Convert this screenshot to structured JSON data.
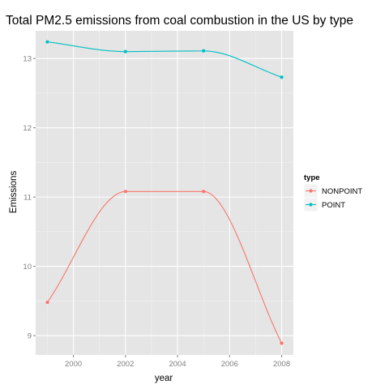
{
  "chart_data": {
    "type": "line",
    "title": "Total PM2.5 emissions from coal combustion in the US by type",
    "xlabel": "year",
    "ylabel": "Emissions",
    "x": [
      1999,
      2002,
      2005,
      2008
    ],
    "xlim": [
      1998.55,
      2008.45
    ],
    "ylim": [
      8.72,
      13.4
    ],
    "xticks": [
      2000,
      2002,
      2004,
      2006,
      2008
    ],
    "yticks": [
      9,
      10,
      11,
      12,
      13
    ],
    "grid": true,
    "smoothed": true,
    "background": "#e5e5e5",
    "legend": {
      "title": "type",
      "position": "right"
    },
    "series": [
      {
        "name": "NONPOINT",
        "color": "#f8766d",
        "values": [
          9.48,
          11.08,
          11.08,
          8.89
        ]
      },
      {
        "name": "POINT",
        "color": "#00bfc4",
        "values": [
          13.24,
          13.1,
          13.11,
          12.73
        ]
      }
    ]
  }
}
